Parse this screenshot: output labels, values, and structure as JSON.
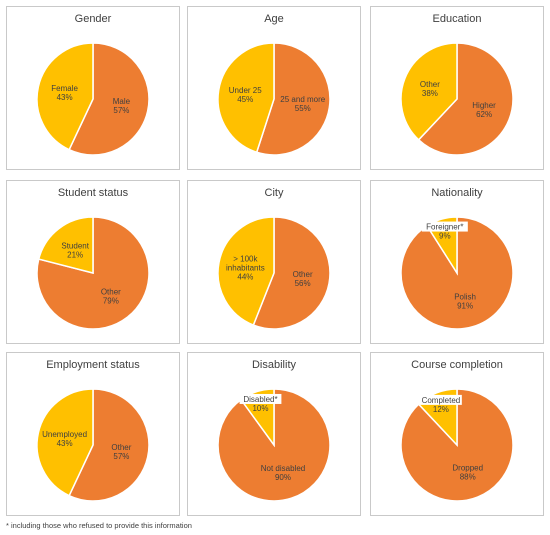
{
  "colors": {
    "orange": "#ED7D31",
    "yellow": "#FFC000"
  },
  "footnote": "* including those who refused to provide this information",
  "chart_data": [
    {
      "type": "pie",
      "title": "Gender",
      "slices": [
        {
          "label": "Male",
          "value": 57,
          "display": "57%",
          "color": "#ED7D31"
        },
        {
          "label": "Female",
          "value": 43,
          "display": "43%",
          "color": "#FFC000"
        }
      ]
    },
    {
      "type": "pie",
      "title": "Age",
      "slices": [
        {
          "label": "25 and more",
          "value": 55,
          "display": "55%",
          "color": "#ED7D31"
        },
        {
          "label": "Under 25",
          "value": 45,
          "display": "45%",
          "color": "#FFC000"
        }
      ]
    },
    {
      "type": "pie",
      "title": "Education",
      "slices": [
        {
          "label": "Higher",
          "value": 62,
          "display": "62%",
          "color": "#ED7D31"
        },
        {
          "label": "Other",
          "value": 38,
          "display": "38%",
          "color": "#FFC000"
        }
      ]
    },
    {
      "type": "pie",
      "title": "Student status",
      "slices": [
        {
          "label": "Other",
          "value": 79,
          "display": "79%",
          "color": "#ED7D31"
        },
        {
          "label": "Student",
          "value": 21,
          "display": "21%",
          "color": "#FFC000"
        }
      ]
    },
    {
      "type": "pie",
      "title": "City",
      "slices": [
        {
          "label": "Other",
          "value": 56,
          "display": "56%",
          "color": "#ED7D31"
        },
        {
          "label": "> 100k inhabitants",
          "value": 44,
          "display": "44%",
          "color": "#FFC000"
        }
      ]
    },
    {
      "type": "pie",
      "title": "Nationality",
      "slices": [
        {
          "label": "Polish",
          "value": 91,
          "display": "91%",
          "color": "#ED7D31"
        },
        {
          "label": "Foreigner*",
          "value": 9,
          "display": "9%",
          "color": "#FFC000"
        }
      ]
    },
    {
      "type": "pie",
      "title": "Employment status",
      "slices": [
        {
          "label": "Other",
          "value": 57,
          "display": "57%",
          "color": "#ED7D31"
        },
        {
          "label": "Unemployed",
          "value": 43,
          "display": "43%",
          "color": "#FFC000"
        }
      ]
    },
    {
      "type": "pie",
      "title": "Disability",
      "slices": [
        {
          "label": "Not disabled",
          "value": 90,
          "display": "90%",
          "color": "#ED7D31"
        },
        {
          "label": "Disabled*",
          "value": 10,
          "display": "10%",
          "color": "#FFC000"
        }
      ]
    },
    {
      "type": "pie",
      "title": "Course completion",
      "slices": [
        {
          "label": "Dropped",
          "value": 88,
          "display": "88%",
          "color": "#ED7D31"
        },
        {
          "label": "Completed",
          "value": 12,
          "display": "12%",
          "color": "#FFC000"
        }
      ]
    }
  ]
}
